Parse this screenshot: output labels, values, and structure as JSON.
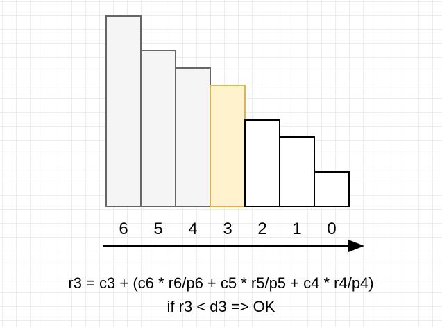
{
  "bars": [
    {
      "label": "6",
      "height": 11,
      "fill": "#f5f5f5",
      "stroke": "#666666"
    },
    {
      "label": "5",
      "height": 9,
      "fill": "#f5f5f5",
      "stroke": "#666666"
    },
    {
      "label": "4",
      "height": 8,
      "fill": "#f5f5f5",
      "stroke": "#666666"
    },
    {
      "label": "3",
      "height": 7,
      "fill": "#fff2cc",
      "stroke": "#d6b656"
    },
    {
      "label": "2",
      "height": 5,
      "fill": "#ffffff",
      "stroke": "#000000"
    },
    {
      "label": "1",
      "height": 4,
      "fill": "#ffffff",
      "stroke": "#000000"
    },
    {
      "label": "0",
      "height": 2,
      "fill": "#ffffff",
      "stroke": "#000000"
    }
  ],
  "formula": {
    "line1": "r3 = c3 + (c6 * r6/p6 + c5 * r5/p5 + c4 * r4/p4)",
    "line2": "if r3 < d3 => OK"
  }
}
